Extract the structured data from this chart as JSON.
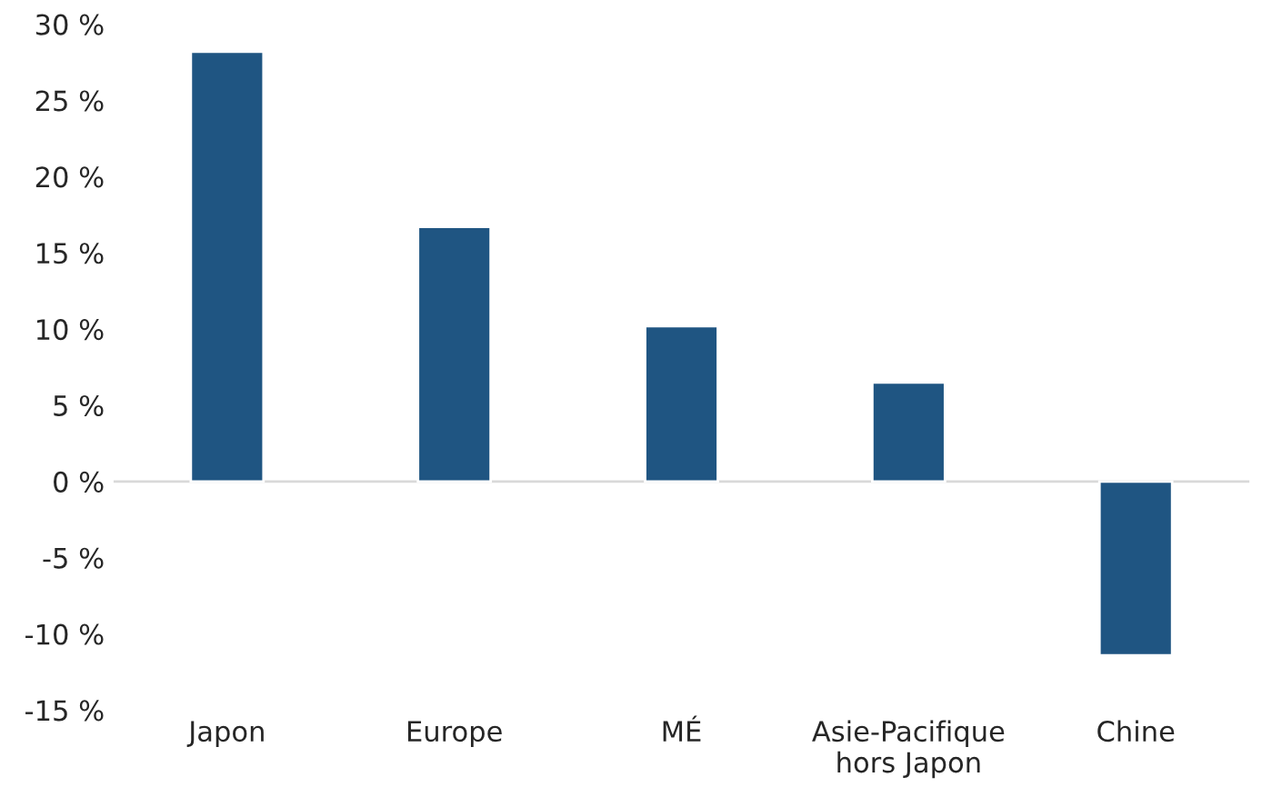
{
  "chart_data": {
    "type": "bar",
    "categories": [
      "Japon",
      "Europe",
      "MÉ",
      "Asie-Pacifique\nhors Japon",
      "Chine"
    ],
    "values": [
      28.2,
      16.7,
      10.2,
      6.5,
      -11.4
    ],
    "color": "#1f5582",
    "ylim": [
      -15,
      30
    ],
    "yticks": [
      {
        "value": -15,
        "label": "-15 %"
      },
      {
        "value": -10,
        "label": "-10 %"
      },
      {
        "value": -5,
        "label": "-5 %"
      },
      {
        "value": 0,
        "label": "0 %"
      },
      {
        "value": 5,
        "label": "5 %"
      },
      {
        "value": 10,
        "label": "10 %"
      },
      {
        "value": 15,
        "label": "15 %"
      },
      {
        "value": 20,
        "label": "20 %"
      },
      {
        "value": 25,
        "label": "25 %"
      },
      {
        "value": 30,
        "label": "30 %"
      }
    ],
    "ref_lines": [
      {
        "axis": "y",
        "value": 0,
        "color": "#d9d9d9"
      }
    ],
    "legend": false
  }
}
